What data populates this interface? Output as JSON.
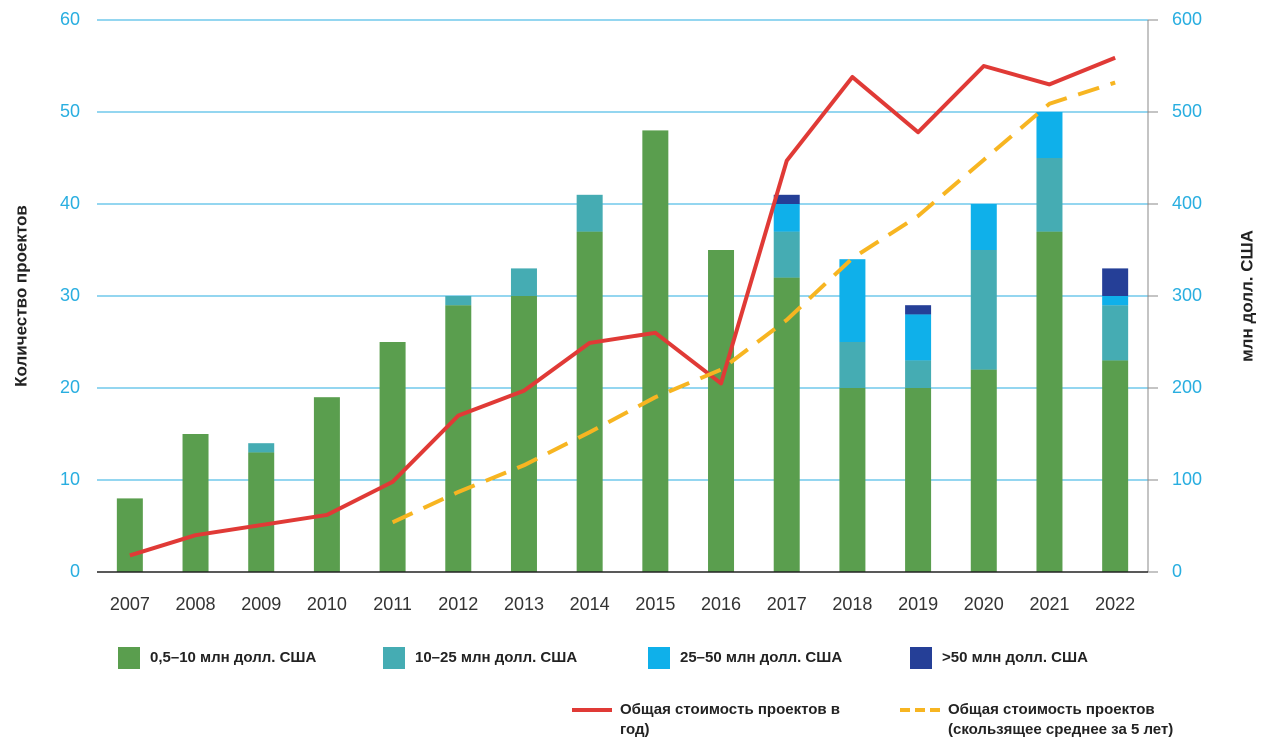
{
  "chart_data": {
    "type": "bar",
    "ylabel": "Количество проектов",
    "y2label": "млн долл. США",
    "categories": [
      "2007",
      "2008",
      "2009",
      "2010",
      "2011",
      "2012",
      "2013",
      "2014",
      "2015",
      "2016",
      "2017",
      "2018",
      "2019",
      "2020",
      "2021",
      "2022"
    ],
    "stacked": true,
    "series": [
      {
        "name": "0,5–10 млн долл. США",
        "type": "bar",
        "color": "#5a9e4e",
        "values": [
          8,
          15,
          13,
          19,
          25,
          29,
          30,
          37,
          48,
          35,
          32,
          20,
          20,
          22,
          37,
          23
        ]
      },
      {
        "name": "10–25 млн долл. США",
        "type": "bar",
        "color": "#45acb3",
        "values": [
          0,
          0,
          1,
          0,
          0,
          1,
          3,
          4,
          0,
          0,
          5,
          5,
          3,
          13,
          8,
          6
        ]
      },
      {
        "name": "25–50 млн долл. США",
        "type": "bar",
        "color": "#0fb0ea",
        "values": [
          0,
          0,
          0,
          0,
          0,
          0,
          0,
          0,
          0,
          0,
          3,
          9,
          5,
          5,
          5,
          1
        ]
      },
      {
        "name": ">50 млн долл. США",
        "type": "bar",
        "color": "#253f97",
        "values": [
          0,
          0,
          0,
          0,
          0,
          0,
          0,
          0,
          0,
          0,
          1,
          0,
          1,
          0,
          0,
          3
        ]
      },
      {
        "name": "Общая стоимость проектов в год)",
        "type": "line",
        "axis": "y2",
        "color": "#e03a36",
        "dashed": false,
        "values": [
          18,
          40,
          51,
          62,
          98,
          170,
          197,
          249,
          260,
          205,
          447,
          538,
          478,
          550,
          530,
          559
        ]
      },
      {
        "name": "Общая стоимость проектов (скользящее среднее за 5 лет)",
        "type": "line",
        "axis": "y2",
        "color": "#f7b521",
        "dashed": true,
        "values": [
          null,
          null,
          null,
          null,
          54,
          87,
          116,
          152,
          190,
          220,
          274,
          341,
          387,
          448,
          509,
          532
        ]
      }
    ],
    "ylim": [
      0,
      60
    ],
    "yticks": [
      0,
      10,
      20,
      30,
      40,
      50,
      60
    ],
    "y2lim": [
      0,
      600
    ],
    "y2ticks": [
      0,
      100,
      200,
      300,
      400,
      500,
      600
    ],
    "grid": true
  }
}
